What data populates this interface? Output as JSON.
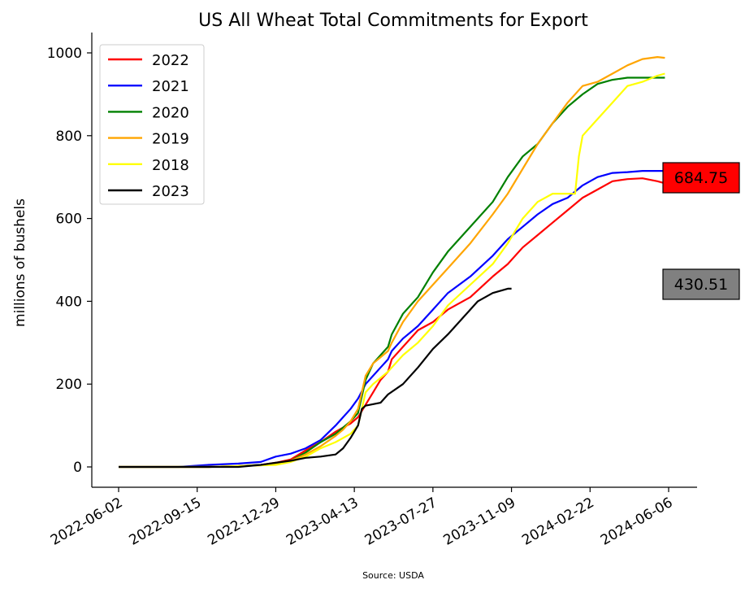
{
  "chart_data": {
    "type": "line",
    "title": "US All Wheat Total Commitments for Export",
    "xlabel": "",
    "ylabel": "millions of bushels",
    "source": "Source: USDA",
    "ylim": [
      -45,
      1040
    ],
    "xlim_days": [
      -20,
      752
    ],
    "y_ticks": [
      0,
      200,
      400,
      600,
      800,
      1000
    ],
    "x_tick_labels": [
      "2022-06-02",
      "2022-09-15",
      "2022-12-29",
      "2023-04-13",
      "2023-07-27",
      "2023-11-09",
      "2024-02-22",
      "2024-06-06"
    ],
    "x_tick_days": [
      0,
      105,
      210,
      315,
      420,
      525,
      630,
      735
    ],
    "grid": false,
    "legend_position": "top-left",
    "series": [
      {
        "name": "2022",
        "color": "#ff0000",
        "x": [
          0,
          40,
          80,
          120,
          160,
          190,
          210,
          230,
          250,
          270,
          290,
          300,
          310,
          320,
          330,
          340,
          350,
          360,
          365,
          380,
          400,
          420,
          440,
          470,
          500,
          520,
          540,
          560,
          580,
          600,
          620,
          640,
          660,
          680,
          700,
          720,
          730,
          735
        ],
        "y": [
          0,
          0,
          0,
          0,
          2,
          5,
          10,
          18,
          40,
          60,
          85,
          95,
          105,
          120,
          150,
          180,
          210,
          230,
          260,
          290,
          330,
          350,
          380,
          410,
          460,
          490,
          530,
          560,
          590,
          620,
          650,
          670,
          690,
          695,
          697,
          690,
          685,
          685
        ]
      },
      {
        "name": "2021",
        "color": "#0000ff",
        "x": [
          0,
          40,
          80,
          120,
          160,
          190,
          210,
          230,
          250,
          270,
          290,
          300,
          310,
          320,
          330,
          340,
          350,
          360,
          365,
          380,
          400,
          420,
          440,
          470,
          500,
          520,
          540,
          560,
          580,
          600,
          620,
          640,
          660,
          680,
          700,
          720,
          735
        ],
        "y": [
          0,
          0,
          0,
          5,
          8,
          12,
          25,
          32,
          45,
          65,
          100,
          120,
          140,
          165,
          200,
          220,
          240,
          260,
          280,
          310,
          340,
          380,
          420,
          460,
          510,
          550,
          580,
          610,
          635,
          650,
          680,
          700,
          710,
          712,
          715,
          715,
          715
        ]
      },
      {
        "name": "2020",
        "color": "#008000",
        "x": [
          0,
          40,
          80,
          120,
          160,
          190,
          210,
          230,
          250,
          270,
          290,
          300,
          310,
          320,
          330,
          340,
          350,
          360,
          365,
          380,
          400,
          420,
          440,
          470,
          500,
          520,
          540,
          560,
          580,
          600,
          620,
          640,
          660,
          680,
          700,
          720,
          730
        ],
        "y": [
          0,
          0,
          0,
          0,
          2,
          5,
          8,
          15,
          35,
          60,
          80,
          95,
          110,
          130,
          210,
          250,
          270,
          290,
          320,
          370,
          410,
          470,
          520,
          580,
          640,
          700,
          750,
          780,
          830,
          870,
          900,
          925,
          935,
          940,
          940,
          940,
          940
        ]
      },
      {
        "name": "2019",
        "color": "#ffa500",
        "x": [
          0,
          40,
          80,
          120,
          160,
          190,
          210,
          230,
          250,
          270,
          290,
          300,
          310,
          320,
          330,
          340,
          350,
          360,
          365,
          380,
          400,
          420,
          440,
          470,
          500,
          520,
          540,
          560,
          580,
          600,
          620,
          640,
          660,
          680,
          700,
          720,
          730
        ],
        "y": [
          0,
          0,
          0,
          0,
          2,
          4,
          8,
          15,
          30,
          50,
          75,
          90,
          110,
          140,
          220,
          250,
          265,
          280,
          300,
          350,
          400,
          440,
          480,
          540,
          610,
          660,
          720,
          780,
          830,
          880,
          920,
          930,
          950,
          970,
          985,
          990,
          988
        ]
      },
      {
        "name": "2018",
        "color": "#ffff00",
        "x": [
          0,
          40,
          80,
          120,
          160,
          190,
          210,
          230,
          250,
          270,
          290,
          300,
          310,
          320,
          330,
          340,
          350,
          360,
          365,
          380,
          400,
          420,
          440,
          470,
          500,
          520,
          540,
          560,
          580,
          600,
          610,
          615,
          620,
          640,
          660,
          680,
          700,
          720,
          730
        ],
        "y": [
          0,
          0,
          0,
          0,
          2,
          4,
          5,
          12,
          25,
          45,
          60,
          70,
          80,
          100,
          180,
          200,
          215,
          230,
          240,
          270,
          300,
          340,
          390,
          440,
          490,
          540,
          600,
          640,
          660,
          660,
          660,
          750,
          800,
          840,
          880,
          920,
          930,
          945,
          950
        ]
      },
      {
        "name": "2023",
        "color": "#000000",
        "x": [
          0,
          40,
          80,
          120,
          160,
          190,
          210,
          230,
          250,
          270,
          290,
          300,
          310,
          320,
          325,
          330,
          350,
          360,
          380,
          400,
          420,
          440,
          460,
          480,
          500,
          520,
          525
        ],
        "y": [
          0,
          0,
          0,
          0,
          0,
          5,
          10,
          15,
          22,
          25,
          30,
          45,
          70,
          100,
          140,
          148,
          155,
          175,
          200,
          240,
          285,
          320,
          360,
          400,
          420,
          430.51,
          430.51
        ]
      }
    ],
    "end_labels": [
      {
        "series": "2022",
        "text": "684.75",
        "value": 684.75,
        "fill": "#ff0000"
      },
      {
        "series": "2023",
        "text": "430.51",
        "value": 430.51,
        "fill": "#808080"
      }
    ]
  }
}
